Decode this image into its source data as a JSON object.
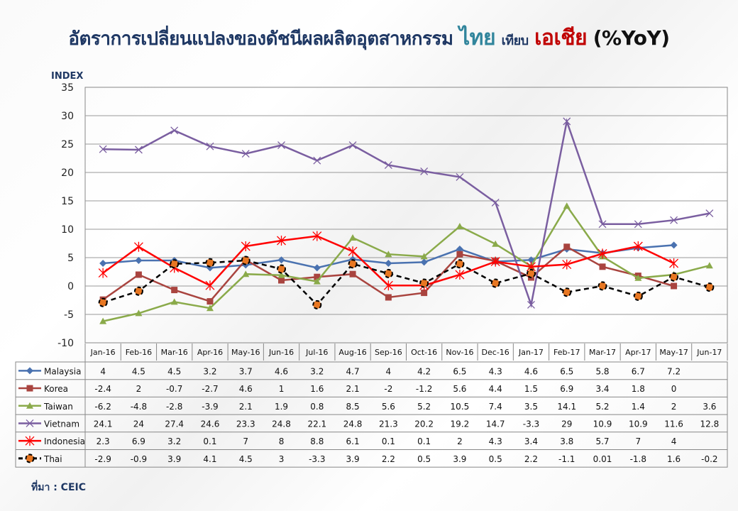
{
  "title": {
    "main": "อัตราการเปลี่ยนแปลงของดัชนีผลผลิตอุตสาหกรรม",
    "thai": "ไทย",
    "vs": "เทียบ",
    "asia": "เอเชีย",
    "yoy": "(%YoY)"
  },
  "source": "ที่มา : CEIC",
  "chart_data": {
    "type": "line",
    "ylabel": "INDEX",
    "ylim": [
      -10,
      35
    ],
    "yticks": [
      -10,
      -5,
      0,
      5,
      10,
      15,
      20,
      25,
      30,
      35
    ],
    "grid": true,
    "legend": "table-below",
    "categories": [
      "Jan-16",
      "Feb-16",
      "Mar-16",
      "Apr-16",
      "May-16",
      "Jun-16",
      "Jul-16",
      "Aug-16",
      "Sep-16",
      "Oct-16",
      "Nov-16",
      "Dec-16",
      "Jan-17",
      "Feb-17",
      "Mar-17",
      "Apr-17",
      "May-17",
      "Jun-17"
    ],
    "series": [
      {
        "name": "Malaysia",
        "color": "#4a72b0",
        "marker": "diamond",
        "values": [
          4,
          4.5,
          4.5,
          3.2,
          3.7,
          4.6,
          3.2,
          4.7,
          4,
          4.2,
          6.5,
          4.3,
          4.6,
          6.5,
          5.8,
          6.7,
          7.2,
          null
        ],
        "labels": [
          "4",
          "4.5",
          "4.5",
          "3.2",
          "3.7",
          "4.6",
          "3.2",
          "4.7",
          "4",
          "4.2",
          "6.5",
          "4.3",
          "4.6",
          "6.5",
          "5.8",
          "6.7",
          "7.2",
          ""
        ]
      },
      {
        "name": "Korea",
        "color": "#a9443f",
        "marker": "square",
        "values": [
          -2.4,
          2,
          -0.7,
          -2.7,
          4.6,
          1,
          1.6,
          2.1,
          -2,
          -1.2,
          5.6,
          4.4,
          1.5,
          6.9,
          3.4,
          1.8,
          0,
          null
        ],
        "labels": [
          "-2.4",
          "2",
          "-0.7",
          "-2.7",
          "4.6",
          "1",
          "1.6",
          "2.1",
          "-2",
          "-1.2",
          "5.6",
          "4.4",
          "1.5",
          "6.9",
          "3.4",
          "1.8",
          "0",
          ""
        ]
      },
      {
        "name": "Taiwan",
        "color": "#8aaa4a",
        "marker": "triangle",
        "values": [
          -6.2,
          -4.8,
          -2.8,
          -3.9,
          2.1,
          1.9,
          0.8,
          8.5,
          5.6,
          5.2,
          10.5,
          7.4,
          3.5,
          14.1,
          5.2,
          1.4,
          2,
          3.6
        ],
        "labels": [
          "-6.2",
          "-4.8",
          "-2.8",
          "-3.9",
          "2.1",
          "1.9",
          "0.8",
          "8.5",
          "5.6",
          "5.2",
          "10.5",
          "7.4",
          "3.5",
          "14.1",
          "5.2",
          "1.4",
          "2",
          "3.6"
        ]
      },
      {
        "name": "Vietnam",
        "color": "#7a5ea0",
        "marker": "x",
        "values": [
          24.1,
          24,
          27.4,
          24.6,
          23.3,
          24.8,
          22.1,
          24.8,
          21.3,
          20.2,
          19.2,
          14.7,
          -3.3,
          29,
          10.9,
          10.9,
          11.6,
          12.8
        ],
        "labels": [
          "24.1",
          "24",
          "27.4",
          "24.6",
          "23.3",
          "24.8",
          "22.1",
          "24.8",
          "21.3",
          "20.2",
          "19.2",
          "14.7",
          "-3.3",
          "29",
          "10.9",
          "10.9",
          "11.6",
          "12.8"
        ]
      },
      {
        "name": "Indonesia",
        "color": "#ff0000",
        "marker": "star",
        "values": [
          2.3,
          6.9,
          3.2,
          0.1,
          7,
          8,
          8.8,
          6.1,
          0.1,
          0.1,
          2,
          4.3,
          3.4,
          3.8,
          5.7,
          7,
          4,
          null
        ],
        "labels": [
          "2.3",
          "6.9",
          "3.2",
          "0.1",
          "7",
          "8",
          "8.8",
          "6.1",
          "0.1",
          "0.1",
          "2",
          "4.3",
          "3.4",
          "3.8",
          "5.7",
          "7",
          "4",
          ""
        ]
      },
      {
        "name": "Thai",
        "color": "#000000",
        "marker": "circle",
        "dashed": true,
        "values": [
          -2.9,
          -0.9,
          3.9,
          4.1,
          4.5,
          3,
          -3.3,
          3.9,
          2.2,
          0.5,
          3.9,
          0.5,
          2.2,
          -1.1,
          0.01,
          -1.8,
          1.6,
          -0.2
        ],
        "labels": [
          "-2.9",
          "-0.9",
          "3.9",
          "4.1",
          "4.5",
          "3",
          "-3.3",
          "3.9",
          "2.2",
          "0.5",
          "3.9",
          "0.5",
          "2.2",
          "-1.1",
          "0.01",
          "-1.8",
          "1.6",
          "-0.2"
        ]
      }
    ]
  }
}
